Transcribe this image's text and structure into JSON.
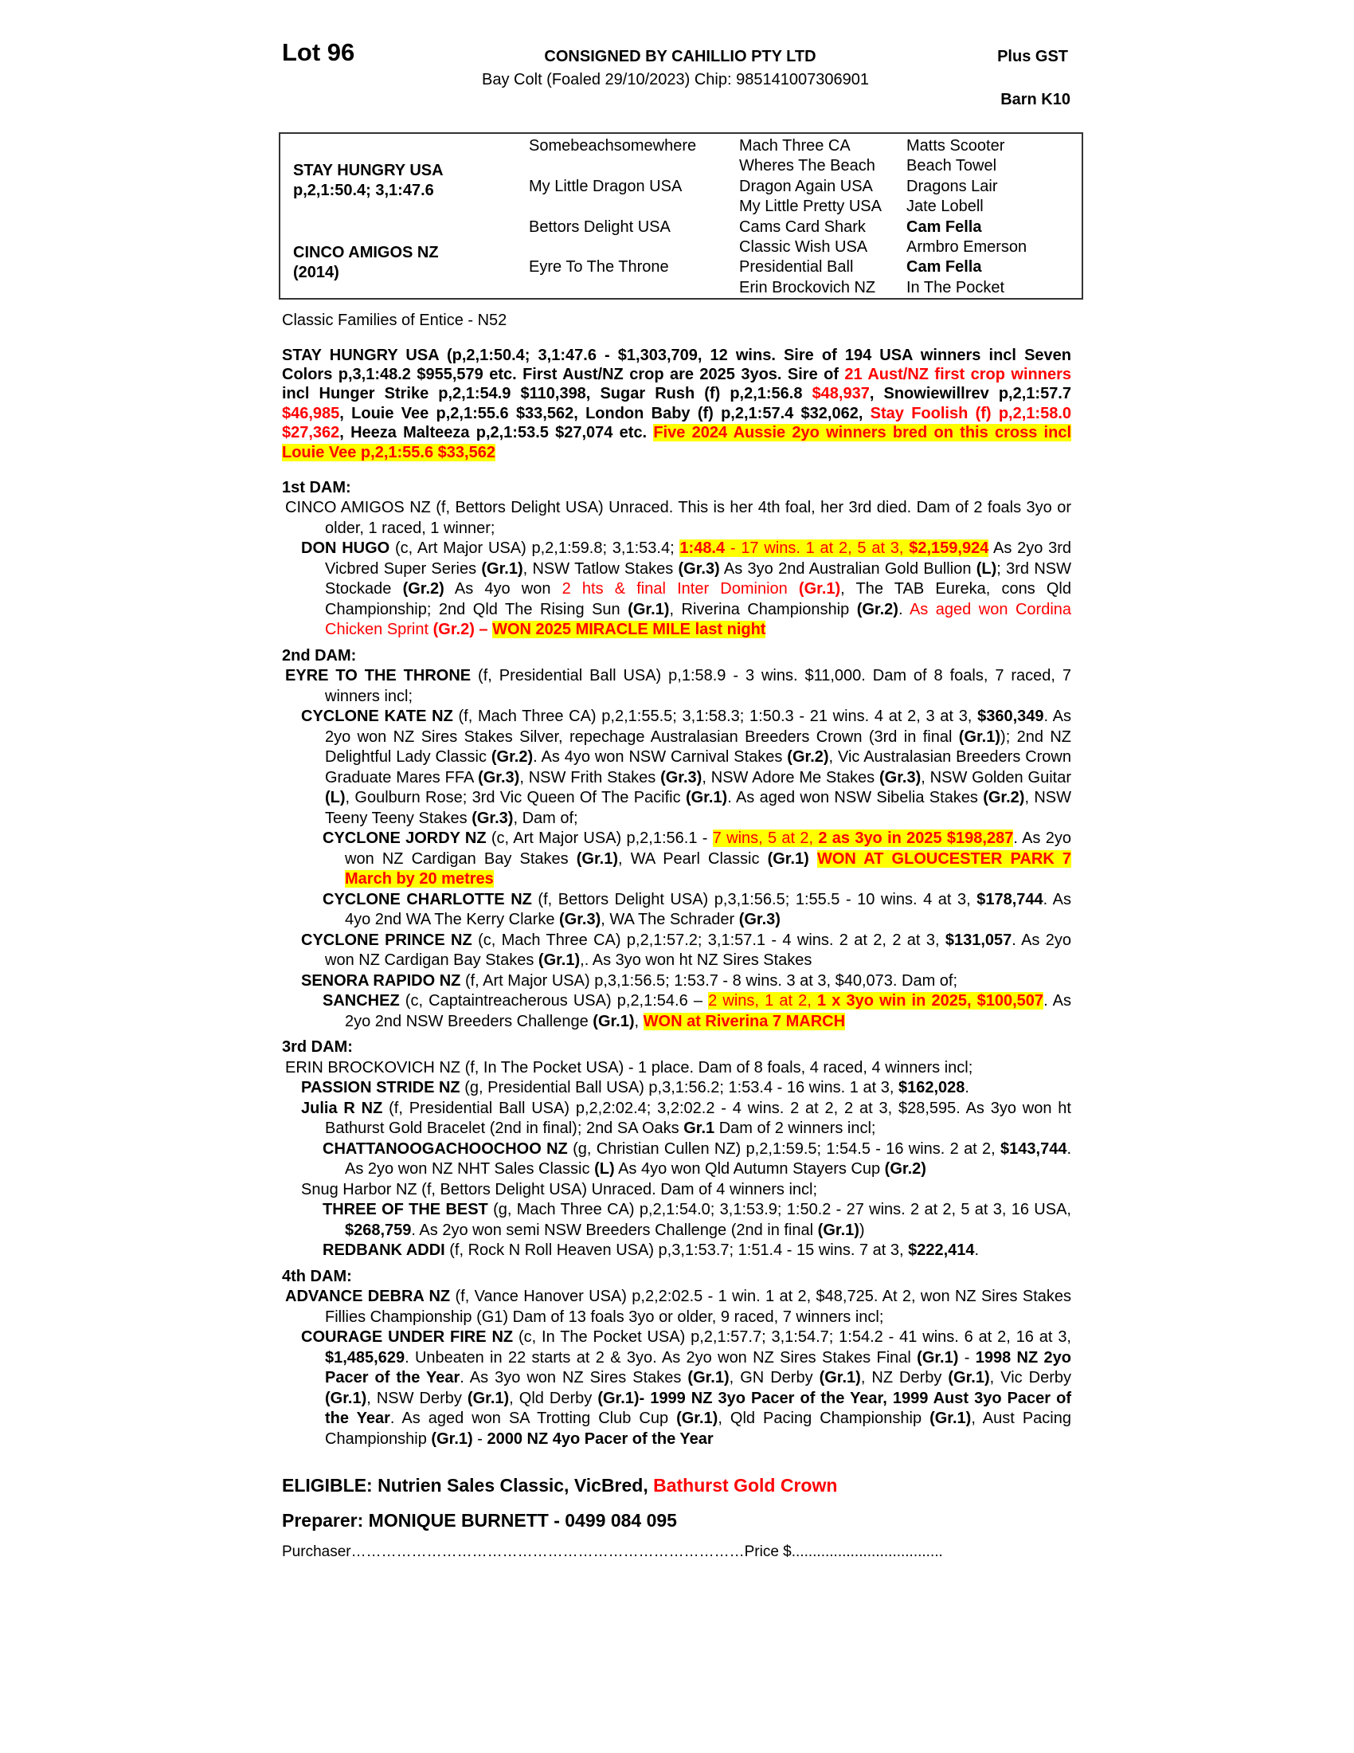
{
  "header": {
    "lot": "Lot 96",
    "consignor": "CONSIGNED BY CAHILLIO PTY LTD",
    "description": "Bay Colt (Foaled 29/10/2023) Chip: 985141007306901",
    "gst": "Plus GST",
    "barn": "Barn K10"
  },
  "pedigree": {
    "sire_name": "STAY HUNGRY USA",
    "sire_record": "p,2,1:50.4; 3,1:47.6",
    "dam_name": "CINCO AMIGOS NZ",
    "dam_year": "(2014)",
    "gen2": [
      "Somebeachsomewhere",
      "My Little Dragon USA",
      "Bettors Delight USA",
      "Eyre To The Throne"
    ],
    "gen3": [
      "Mach Three CA",
      "Wheres The Beach",
      "Dragon Again USA",
      "My Little Pretty USA",
      "Cams Card Shark",
      "Classic Wish USA",
      "Presidential Ball",
      "Erin Brockovich NZ"
    ],
    "gen4": [
      {
        "t": "Matts Scooter",
        "b": false
      },
      {
        "t": "Beach Towel",
        "b": false
      },
      {
        "t": "Dragons Lair",
        "b": false
      },
      {
        "t": "Jate Lobell",
        "b": false
      },
      {
        "t": "Cam Fella",
        "b": true
      },
      {
        "t": "Armbro Emerson",
        "b": false
      },
      {
        "t": "Cam Fella",
        "b": true
      },
      {
        "t": "In The Pocket",
        "b": false
      }
    ]
  },
  "family": "Classic Families of Entice - N52",
  "sire_para": [
    {
      "s": "b",
      "t": "STAY HUNGRY USA (p,2,1:50.4; 3,1:47.6 - $1,303,709, 12 wins. Sire of 194 USA winners incl Seven Colors p,3,1:48.2 $955,579 etc. First Aust/NZ  crop are 2025 3yos. Sire of "
    },
    {
      "s": "rb",
      "t": "21 Aust/NZ first crop winners"
    },
    {
      "s": "b",
      "t": " incl Hunger Strike p,2,1:54.9 $110,398, Sugar Rush (f) p,2,1:56.8 "
    },
    {
      "s": "rb",
      "t": "$48,937"
    },
    {
      "s": "b",
      "t": ", Snowiewillrev p,2,1:57.7 "
    },
    {
      "s": "rb",
      "t": "$46,985"
    },
    {
      "s": "b",
      "t": ", Louie Vee p,2,1:55.6 $33,562, London Baby (f) p,2,1:57.4 $32,062, "
    },
    {
      "s": "rb",
      "t": "Stay Foolish (f) p,2,1:58.0 $27,362"
    },
    {
      "s": "b",
      "t": ", Heeza Malteeza p,2,1:53.5 $27,074 etc. "
    },
    {
      "s": "hrb",
      "t": "Five 2024 Aussie 2yo winners bred on this cross incl Louie Vee p,2,1:55.6 $33,562"
    }
  ],
  "dams": [
    {
      "heading": "1st DAM:",
      "entries": [
        {
          "level": 0,
          "segs": [
            {
              "s": "n",
              "t": "CINCO AMIGOS NZ (f, Bettors Delight USA) Unraced. This is her 4th foal, her 3rd died. Dam of 2 foals 3yo or older, 1 raced, 1 winner;"
            }
          ]
        },
        {
          "level": 1,
          "segs": [
            {
              "s": "b",
              "t": "DON HUGO"
            },
            {
              "s": "n",
              "t": " (c, Art Major USA) p,2,1:59.8; 3,1:53.4; "
            },
            {
              "s": "hrb",
              "t": "1:48.4"
            },
            {
              "s": "hr",
              "t": " - 17 wins. 1 at 2, 5 at 3, "
            },
            {
              "s": "hrb",
              "t": "$2,159,924"
            },
            {
              "s": "n",
              "t": " As 2yo 3rd Vicbred Super Series "
            },
            {
              "s": "b",
              "t": "(Gr.1)"
            },
            {
              "s": "n",
              "t": ", NSW Tatlow Stakes "
            },
            {
              "s": "b",
              "t": "(Gr.3)"
            },
            {
              "s": "n",
              "t": " As 3yo 2nd Australian Gold Bullion "
            },
            {
              "s": "b",
              "t": "(L)"
            },
            {
              "s": "n",
              "t": "; 3rd NSW Stockade "
            },
            {
              "s": "b",
              "t": "(Gr.2)"
            },
            {
              "s": "n",
              "t": " As 4yo won  "
            },
            {
              "s": "r",
              "t": "2 hts & final Inter Dominion "
            },
            {
              "s": "rb",
              "t": "(Gr.1)"
            },
            {
              "s": "n",
              "t": ", The TAB Eureka, cons Qld Championship; 2nd Qld The Rising Sun "
            },
            {
              "s": "b",
              "t": "(Gr.1)"
            },
            {
              "s": "n",
              "t": ", Riverina Championship "
            },
            {
              "s": "b",
              "t": "(Gr.2)"
            },
            {
              "s": "n",
              "t": ". "
            },
            {
              "s": "r",
              "t": "As aged won Cordina Chicken Sprint "
            },
            {
              "s": "rb",
              "t": "(Gr.2) – "
            },
            {
              "s": "hrb",
              "t": "WON 2025 MIRACLE MILE last night"
            }
          ]
        }
      ]
    },
    {
      "heading": "2nd DAM:",
      "entries": [
        {
          "level": 0,
          "segs": [
            {
              "s": "b",
              "t": "EYRE TO THE THRONE"
            },
            {
              "s": "n",
              "t": " (f, Presidential Ball USA) p,1:58.9 - 3 wins. $11,000. Dam of 8 foals, 7 raced, 7 winners incl;"
            }
          ]
        },
        {
          "level": 1,
          "segs": [
            {
              "s": "b",
              "t": "CYCLONE KATE NZ"
            },
            {
              "s": "n",
              "t": " (f, Mach Three CA) p,2,1:55.5; 3,1:58.3; 1:50.3 - 21 wins. 4 at 2, 3 at 3, "
            },
            {
              "s": "b",
              "t": "$360,349"
            },
            {
              "s": "n",
              "t": ". As 2yo won NZ Sires Stakes Silver, repechage Australasian Breeders Crown (3rd in final "
            },
            {
              "s": "b",
              "t": "(Gr.1)"
            },
            {
              "s": "n",
              "t": "); 2nd NZ Delightful Lady Classic "
            },
            {
              "s": "b",
              "t": "(Gr.2)"
            },
            {
              "s": "n",
              "t": ". As 4yo won NSW Carnival Stakes "
            },
            {
              "s": "b",
              "t": "(Gr.2)"
            },
            {
              "s": "n",
              "t": ", Vic Australasian Breeders Crown Graduate Mares FFA "
            },
            {
              "s": "b",
              "t": "(Gr.3)"
            },
            {
              "s": "n",
              "t": ", NSW Frith Stakes "
            },
            {
              "s": "b",
              "t": "(Gr.3)"
            },
            {
              "s": "n",
              "t": ", NSW Adore Me Stakes "
            },
            {
              "s": "b",
              "t": "(Gr.3)"
            },
            {
              "s": "n",
              "t": ", NSW Golden Guitar "
            },
            {
              "s": "b",
              "t": "(L)"
            },
            {
              "s": "n",
              "t": ", Goulburn Rose; 3rd Vic Queen Of The Pacific "
            },
            {
              "s": "b",
              "t": "(Gr.1)"
            },
            {
              "s": "n",
              "t": ". As aged won NSW Sibelia Stakes "
            },
            {
              "s": "b",
              "t": "(Gr.2)"
            },
            {
              "s": "n",
              "t": ", NSW Teeny Teeny Stakes "
            },
            {
              "s": "b",
              "t": "(Gr.3)"
            },
            {
              "s": "n",
              "t": ", Dam of;"
            }
          ]
        },
        {
          "level": 2,
          "segs": [
            {
              "s": "b",
              "t": "CYCLONE JORDY NZ"
            },
            {
              "s": "n",
              "t": " (c, Art Major USA) p,2,1:56.1 - "
            },
            {
              "s": "hr",
              "t": "7 wins, 5 at 2, "
            },
            {
              "s": "hrb",
              "t": "2 as 3yo in 2025 $198,287"
            },
            {
              "s": "n",
              "t": ". As 2yo won NZ Cardigan Bay Stakes "
            },
            {
              "s": "b",
              "t": "(Gr.1)"
            },
            {
              "s": "n",
              "t": ", WA Pearl Classic "
            },
            {
              "s": "b",
              "t": "(Gr.1)"
            },
            {
              "s": "n",
              "t": " "
            },
            {
              "s": "hrb",
              "t": "WON AT GLOUCESTER PARK 7 March by 20 metres"
            }
          ]
        },
        {
          "level": 2,
          "segs": [
            {
              "s": "b",
              "t": "CYCLONE CHARLOTTE NZ"
            },
            {
              "s": "n",
              "t": " (f, Bettors Delight USA) p,3,1:56.5; 1:55.5 - 10 wins. 4 at 3, "
            },
            {
              "s": "b",
              "t": "$178,744"
            },
            {
              "s": "n",
              "t": ". As 4yo 2nd WA The Kerry Clarke "
            },
            {
              "s": "b",
              "t": "(Gr.3)"
            },
            {
              "s": "n",
              "t": ", WA The Schrader "
            },
            {
              "s": "b",
              "t": "(Gr.3)"
            }
          ]
        },
        {
          "level": 1,
          "segs": [
            {
              "s": "b",
              "t": "CYCLONE PRINCE NZ"
            },
            {
              "s": "n",
              "t": " (c, Mach Three CA) p,2,1:57.2; 3,1:57.1 - 4 wins. 2 at 2, 2 at 3, "
            },
            {
              "s": "b",
              "t": "$131,057"
            },
            {
              "s": "n",
              "t": ". As 2yo won NZ Cardigan Bay Stakes "
            },
            {
              "s": "b",
              "t": "(Gr.1)"
            },
            {
              "s": "n",
              "t": ",. As 3yo won ht NZ Sires Stakes"
            }
          ]
        },
        {
          "level": 1,
          "segs": [
            {
              "s": "b",
              "t": "SENORA RAPIDO NZ"
            },
            {
              "s": "n",
              "t": " (f, Art Major USA) p,3,1:56.5; 1:53.7 - 8 wins. 3 at 3, $40,073. Dam of;"
            }
          ]
        },
        {
          "level": 2,
          "segs": [
            {
              "s": "b",
              "t": "SANCHEZ"
            },
            {
              "s": "n",
              "t": " (c, Captaintreacherous USA) p,2,1:54.6 – "
            },
            {
              "s": "hr",
              "t": "2 wins, 1 at 2, "
            },
            {
              "s": "hrb",
              "t": "1 x 3yo win in 2025, $100,507"
            },
            {
              "s": "n",
              "t": ". As 2yo 2nd NSW Breeders Challenge "
            },
            {
              "s": "b",
              "t": "(Gr.1)"
            },
            {
              "s": "n",
              "t": ", "
            },
            {
              "s": "hrb",
              "t": "WON at Riverina 7 MARCH"
            }
          ]
        }
      ]
    },
    {
      "heading": "3rd DAM:",
      "entries": [
        {
          "level": 0,
          "segs": [
            {
              "s": "n",
              "t": "ERIN BROCKOVICH NZ (f, In The Pocket USA) - 1 place. Dam of 8 foals, 4 raced, 4 winners incl;"
            }
          ]
        },
        {
          "level": 1,
          "segs": [
            {
              "s": "b",
              "t": "PASSION STRIDE NZ"
            },
            {
              "s": "n",
              "t": " (g, Presidential Ball USA) p,3,1:56.2; 1:53.4 - 16 wins. 1 at 3, "
            },
            {
              "s": "b",
              "t": "$162,028"
            },
            {
              "s": "n",
              "t": "."
            }
          ]
        },
        {
          "level": 1,
          "segs": [
            {
              "s": "b",
              "t": "Julia R NZ"
            },
            {
              "s": "n",
              "t": " (f, Presidential Ball USA) p,2,2:02.4; 3,2:02.2 - 4 wins. 2 at 2, 2 at 3, $28,595. As 3yo won ht Bathurst Gold Bracelet (2nd in final); 2nd SA Oaks "
            },
            {
              "s": "b",
              "t": "Gr.1"
            },
            {
              "s": "n",
              "t": " Dam of 2 winners incl;"
            }
          ]
        },
        {
          "level": 2,
          "segs": [
            {
              "s": "b",
              "t": "CHATTANOOGACHOOCHOO NZ"
            },
            {
              "s": "n",
              "t": " (g, Christian Cullen NZ) p,2,1:59.5; 1:54.5 - 16 wins. 2 at 2, "
            },
            {
              "s": "b",
              "t": "$143,744"
            },
            {
              "s": "n",
              "t": ". As 2yo won NZ NHT Sales Classic "
            },
            {
              "s": "b",
              "t": "(L)"
            },
            {
              "s": "n",
              "t": " As 4yo won Qld Autumn Stayers Cup "
            },
            {
              "s": "b",
              "t": "(Gr.2)"
            }
          ]
        },
        {
          "level": 1,
          "segs": [
            {
              "s": "n",
              "t": "Snug Harbor NZ (f, Bettors Delight USA) Unraced. Dam of 4 winners incl;"
            }
          ]
        },
        {
          "level": 2,
          "segs": [
            {
              "s": "b",
              "t": "THREE OF THE BEST"
            },
            {
              "s": "n",
              "t": " (g, Mach Three CA) p,2,1:54.0; 3,1:53.9; 1:50.2 - 27 wins. 2 at 2, 5 at 3, 16 USA, "
            },
            {
              "s": "b",
              "t": "$268,759"
            },
            {
              "s": "n",
              "t": ". As 2yo won semi NSW Breeders Challenge (2nd in final "
            },
            {
              "s": "b",
              "t": "(Gr.1)"
            },
            {
              "s": "n",
              "t": ")"
            }
          ]
        },
        {
          "level": 2,
          "segs": [
            {
              "s": "b",
              "t": "REDBANK ADDI"
            },
            {
              "s": "n",
              "t": " (f, Rock N Roll Heaven USA) p,3,1:53.7; 1:51.4 - 15 wins. 7 at 3, "
            },
            {
              "s": "b",
              "t": "$222,414"
            },
            {
              "s": "n",
              "t": "."
            }
          ]
        }
      ]
    },
    {
      "heading": "4th DAM:",
      "entries": [
        {
          "level": 0,
          "segs": [
            {
              "s": "b",
              "t": "ADVANCE DEBRA NZ"
            },
            {
              "s": "n",
              "t": " (f, Vance Hanover USA) p,2,2:02.5 - 1 win. 1 at 2, $48,725. At 2, won NZ Sires Stakes Fillies Championship (G1) Dam of 13 foals 3yo or older, 9 raced, 7 winners incl;"
            }
          ]
        },
        {
          "level": 1,
          "segs": [
            {
              "s": "b",
              "t": "COURAGE UNDER FIRE NZ"
            },
            {
              "s": "n",
              "t": " (c, In The Pocket USA) p,2,1:57.7; 3,1:54.7; 1:54.2 - 41 wins. 6 at 2, 16 at 3, "
            },
            {
              "s": "b",
              "t": "$1,485,629"
            },
            {
              "s": "n",
              "t": ". Unbeaten in 22 starts at 2 & 3yo. As 2yo won NZ Sires Stakes Final "
            },
            {
              "s": "b",
              "t": "(Gr.1)"
            },
            {
              "s": "n",
              "t": " - "
            },
            {
              "s": "b",
              "t": "1998 NZ 2yo Pacer of the Year"
            },
            {
              "s": "n",
              "t": ". As 3yo won NZ Sires Stakes "
            },
            {
              "s": "b",
              "t": "(Gr.1)"
            },
            {
              "s": "n",
              "t": ", GN Derby "
            },
            {
              "s": "b",
              "t": "(Gr.1)"
            },
            {
              "s": "n",
              "t": ", NZ Derby "
            },
            {
              "s": "b",
              "t": "(Gr.1)"
            },
            {
              "s": "n",
              "t": ", Vic Derby "
            },
            {
              "s": "b",
              "t": "(Gr.1)"
            },
            {
              "s": "n",
              "t": ", NSW Derby "
            },
            {
              "s": "b",
              "t": "(Gr.1)"
            },
            {
              "s": "n",
              "t": ", Qld Derby "
            },
            {
              "s": "b",
              "t": "(Gr.1)- 1999 NZ 3yo Pacer of the Year, 1999 Aust 3yo Pacer of the Year"
            },
            {
              "s": "n",
              "t": ". As aged won SA Trotting Club Cup "
            },
            {
              "s": "b",
              "t": "(Gr.1)"
            },
            {
              "s": "n",
              "t": ", Qld Pacing Championship "
            },
            {
              "s": "b",
              "t": "(Gr.1)"
            },
            {
              "s": "n",
              "t": ", Aust Pacing Championship "
            },
            {
              "s": "b",
              "t": "(Gr.1)"
            },
            {
              "s": "n",
              "t": " - "
            },
            {
              "s": "b",
              "t": "2000 NZ 4yo Pacer of the Year"
            }
          ]
        }
      ]
    }
  ],
  "eligible": {
    "label": "ELIGIBLE: Nutrien Sales Classic, VicBred, ",
    "highlight": "Bathurst Gold Crown"
  },
  "preparer": "Preparer: MONIQUE BURNETT - 0499 084 095",
  "purchaser": {
    "label": "Purchaser",
    "dots1": "……………………………………………………………………",
    "price_label": "Price $",
    "dots2": "...................................."
  },
  "colors": {
    "red": "#ff0000",
    "highlight": "#ffff00",
    "border": "#333333"
  }
}
